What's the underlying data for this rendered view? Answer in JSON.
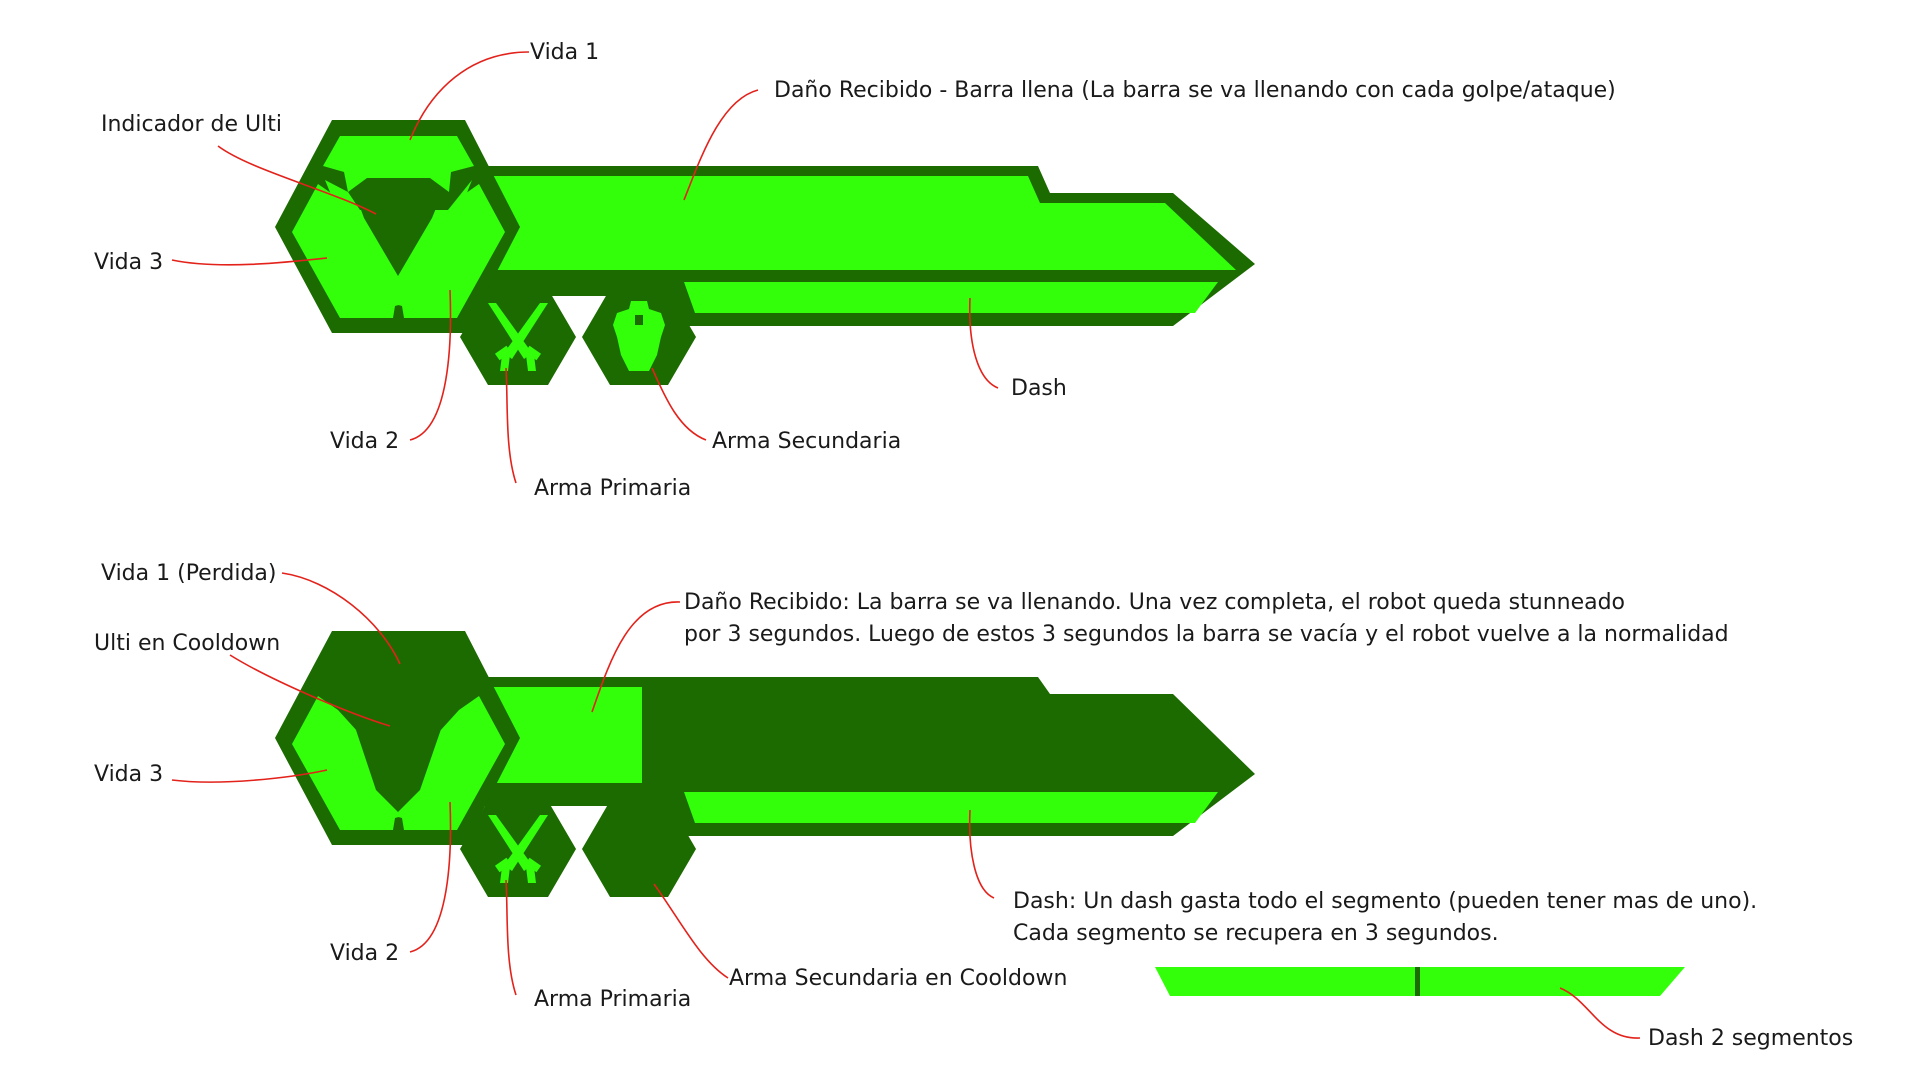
{
  "colors": {
    "dark_green": "#1b6b00",
    "bright_green": "#33ff0a",
    "leader_red": "#e3221b",
    "text": "#1a1a1a"
  },
  "top_hud": {
    "labels": {
      "vida1": "Vida 1",
      "ulti": "Indicador de Ulti",
      "vida3": "Vida 3",
      "vida2": "Vida 2",
      "arma_primaria": "Arma Primaria",
      "arma_secundaria": "Arma Secundaria",
      "dano": "Daño Recibido - Barra llena (La barra se va llenando con cada golpe/ataque)",
      "dash": "Dash"
    }
  },
  "bottom_hud": {
    "damage_fill_fraction": 0.25,
    "labels": {
      "vida1": "Vida 1 (Perdida)",
      "ulti": "Ulti en Cooldown",
      "vida3": "Vida 3",
      "vida2": "Vida 2",
      "arma_primaria": "Arma Primaria",
      "arma_secundaria": "Arma Secundaria en Cooldown",
      "dano_line1": "Daño Recibido: La barra se va llenando. Una vez completa, el robot queda stunneado",
      "dano_line2": "por 3 segundos. Luego de estos 3 segundos la barra se vacía y el robot vuelve a la normalidad",
      "dash_line1": "Dash: Un dash gasta todo el segmento (pueden tener mas de uno).",
      "dash_line2": "Cada segmento se recupera en 3 segundos.",
      "dash2": "Dash 2 segmentos"
    }
  },
  "icons": {
    "primary_weapon": "crossed-swords-icon",
    "secondary_weapon": "shield-crest-icon"
  }
}
